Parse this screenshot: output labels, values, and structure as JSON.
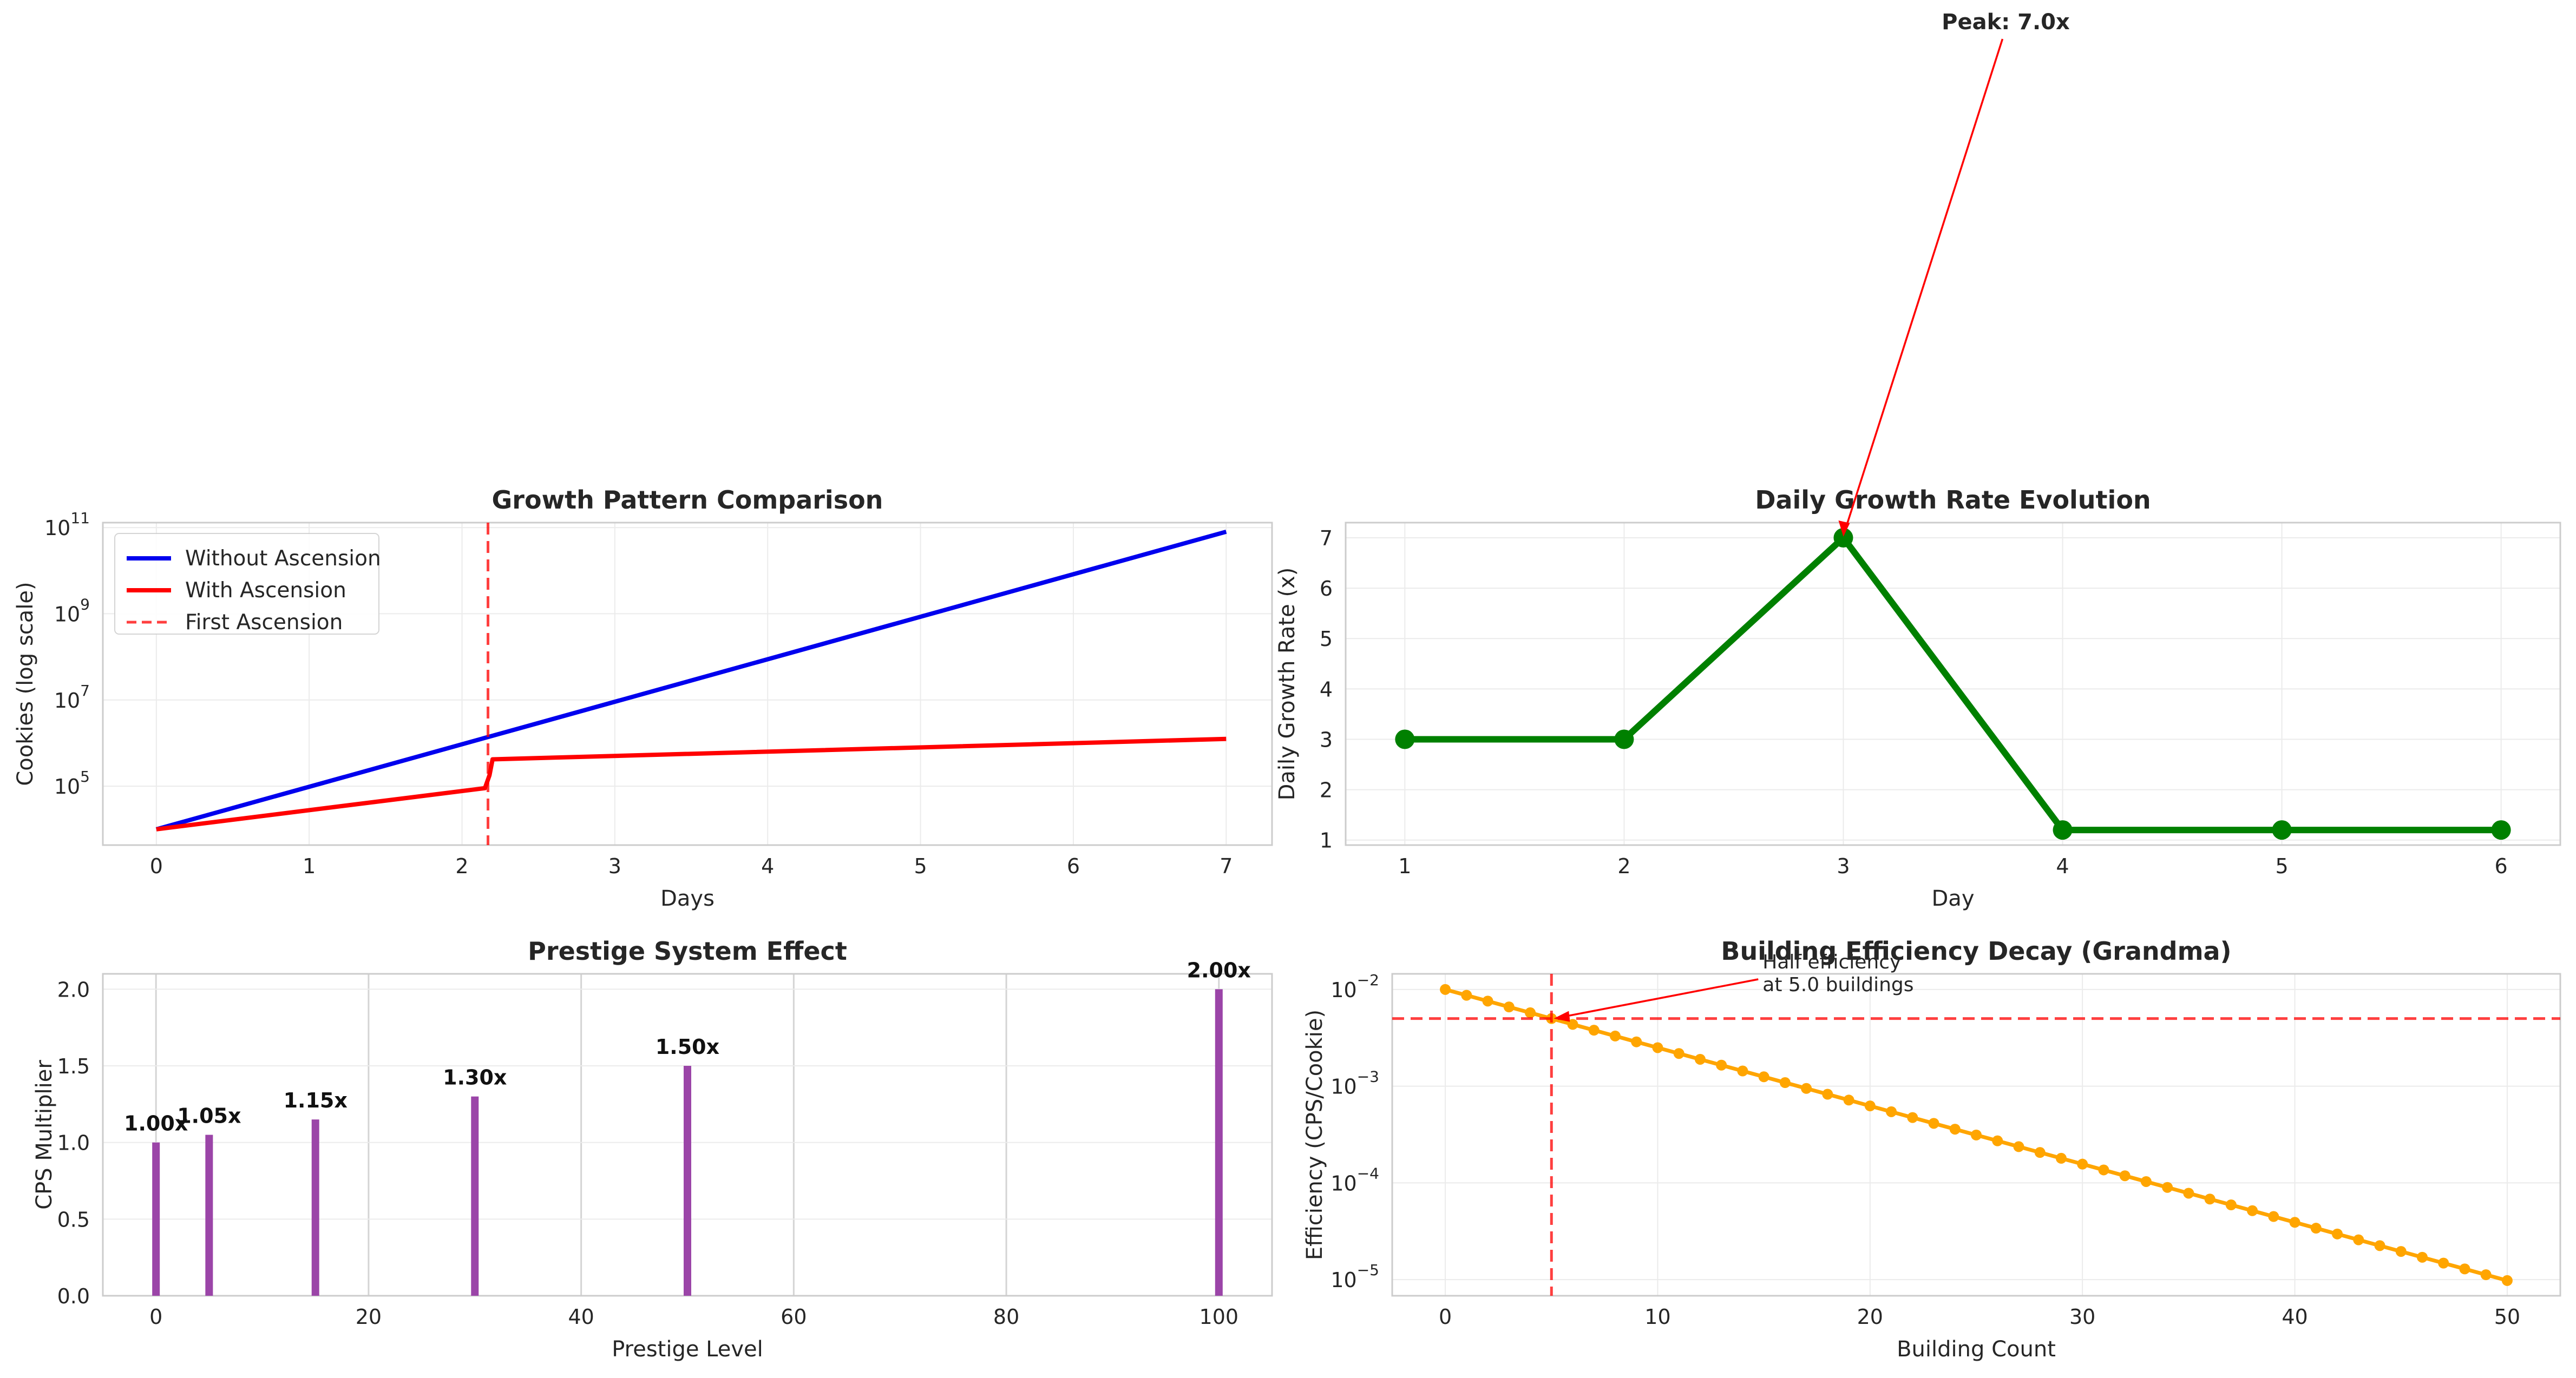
{
  "chart_data": [
    {
      "type": "line",
      "title": "Growth Pattern Comparison",
      "xlabel": "Days",
      "ylabel": "Cookies (log scale)",
      "yscale": "log",
      "xlim": [
        -0.35,
        7.3
      ],
      "ylim": [
        4300,
        130000000000
      ],
      "xticks": [
        "0",
        "1",
        "2",
        "3",
        "4",
        "5",
        "6",
        "7"
      ],
      "yticks": [
        {
          "base": "10",
          "exp": "5",
          "value": 100000
        },
        {
          "base": "10",
          "exp": "7",
          "value": 10000000
        },
        {
          "base": "10",
          "exp": "9",
          "value": 1000000000
        },
        {
          "base": "10",
          "exp": "11",
          "value": 100000000000
        }
      ],
      "grid": true,
      "legend_position": "top-left",
      "series": [
        {
          "name": "Without Ascension",
          "color": "#0000ee",
          "x": [
            0,
            7
          ],
          "y": [
            10000,
            80000000000
          ]
        },
        {
          "name": "With Ascension",
          "color": "#ff0000",
          "x": [
            0,
            2.15,
            2.18,
            2.2,
            7
          ],
          "y": [
            10000,
            90000,
            180000,
            420000,
            1250000
          ]
        }
      ],
      "vlines": [
        {
          "name": "First Ascension",
          "x": 2.17,
          "color": "#ff0000"
        }
      ]
    },
    {
      "type": "line",
      "title": "Daily Growth Rate Evolution",
      "xlabel": "Day",
      "ylabel": "Daily Growth Rate (x)",
      "xlim": [
        0.73,
        6.27
      ],
      "ylim": [
        0.9,
        7.3
      ],
      "xticks": [
        "1",
        "2",
        "3",
        "4",
        "5",
        "6"
      ],
      "yticks": [
        "1",
        "2",
        "3",
        "4",
        "5",
        "6",
        "7"
      ],
      "grid": true,
      "series": [
        {
          "color": "#008000",
          "x": [
            1,
            2,
            3,
            4,
            5,
            6
          ],
          "y": [
            3.0,
            3.0,
            7.0,
            1.2,
            1.2,
            1.2
          ]
        }
      ],
      "annotation": {
        "text": "Peak: 7.0x",
        "x": 3,
        "y": 7.0
      }
    },
    {
      "type": "bar",
      "title": "Prestige System Effect",
      "xlabel": "Prestige Level",
      "ylabel": "CPS Multiplier",
      "xlim": [
        -5,
        105
      ],
      "ylim": [
        0,
        2.1
      ],
      "xticks": [
        "0",
        "20",
        "40",
        "60",
        "80",
        "100"
      ],
      "yticks": [
        "0.0",
        "0.5",
        "1.0",
        "1.5",
        "2.0"
      ],
      "grid": true,
      "color": "#9b45a8",
      "x": [
        0,
        5,
        15,
        30,
        50,
        100
      ],
      "values": [
        1.0,
        1.05,
        1.15,
        1.3,
        1.5,
        2.0
      ],
      "labels": [
        "1.00x",
        "1.05x",
        "1.15x",
        "1.30x",
        "1.50x",
        "2.00x"
      ]
    },
    {
      "type": "line",
      "title": "Building Efficiency Decay (Grandma)",
      "xlabel": "Building Count",
      "ylabel": "Efficiency (CPS/Cookie)",
      "yscale": "log",
      "xlim": [
        -2.5,
        52.5
      ],
      "ylim": [
        6.8e-06,
        0.0145
      ],
      "xticks": [
        "0",
        "10",
        "20",
        "30",
        "40",
        "50"
      ],
      "yticks": [
        {
          "base": "10",
          "exp": "−2",
          "value": 0.01
        },
        {
          "base": "10",
          "exp": "−3",
          "value": 0.001
        },
        {
          "base": "10",
          "exp": "−4",
          "value": 0.0001
        },
        {
          "base": "10",
          "exp": "−5",
          "value": 1e-05
        }
      ],
      "grid": true,
      "series": [
        {
          "color": "#ffa500",
          "x_start": 0,
          "x_end": 50,
          "y_start": 0.01,
          "ratio": 0.87055
        }
      ],
      "hline": {
        "y": 0.005,
        "color": "#ff0000"
      },
      "vline": {
        "x": 5,
        "color": "#ff0000"
      },
      "annotation": {
        "line1": "Half efficiency",
        "line2": "at 5.0 buildings",
        "x": 5,
        "y": 0.005
      }
    }
  ]
}
